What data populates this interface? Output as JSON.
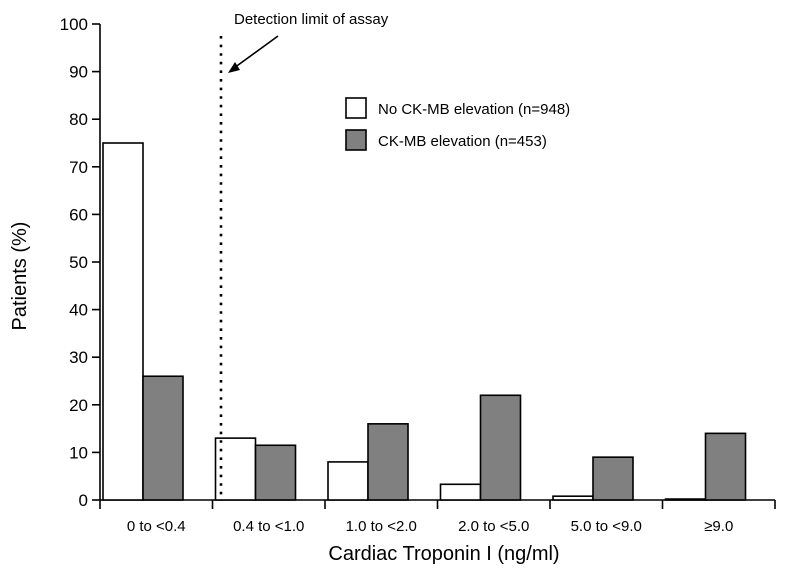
{
  "chart_data": {
    "type": "bar",
    "categories": [
      "0 to <0.4",
      "0.4 to <1.0",
      "1.0 to <2.0",
      "2.0 to <5.0",
      "5.0 to <9.0",
      "≥9.0"
    ],
    "series": [
      {
        "name": "No CK-MB elevation (n=948)",
        "values": [
          75,
          13,
          8,
          3.3,
          0.8,
          0.2
        ],
        "color": "#ffffff"
      },
      {
        "name": "CK-MB elevation (n=453)",
        "values": [
          26,
          11.5,
          16,
          22,
          9,
          14
        ],
        "color": "#808080"
      }
    ],
    "title": "",
    "xlabel": "Cardiac Troponin I (ng/ml)",
    "ylabel": "Patients (%)",
    "ylim": [
      0,
      100
    ],
    "yticks": [
      0,
      10,
      20,
      30,
      40,
      50,
      60,
      70,
      80,
      90,
      100
    ],
    "grid": false,
    "legend_position": "top-right",
    "annotation": "Detection limit of assay"
  }
}
